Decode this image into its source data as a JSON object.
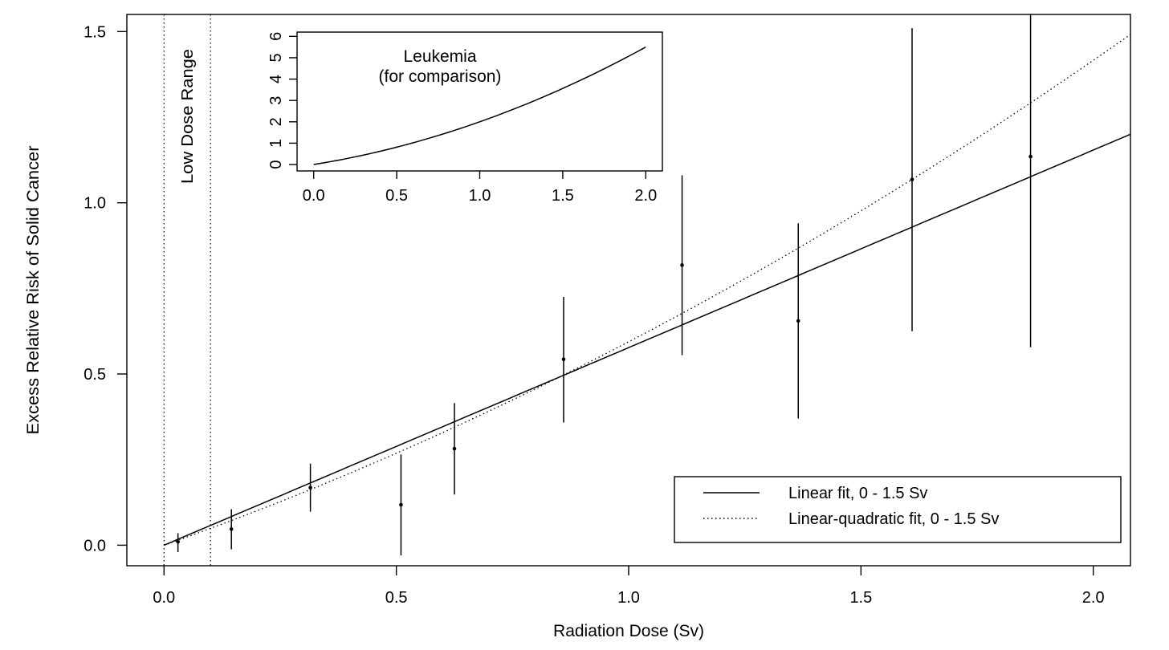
{
  "chart_data": [
    {
      "type": "line",
      "title": "",
      "xlabel": "Radiation Dose (Sv)",
      "ylabel": "Excess Relative Risk of Solid Cancer",
      "xlim": [
        -0.08,
        2.08
      ],
      "ylim": [
        -0.06,
        1.55
      ],
      "x_ticks": [
        0.0,
        0.5,
        1.0,
        1.5,
        2.0
      ],
      "x_tick_labels": [
        "0.0",
        "0.5",
        "1.0",
        "1.5",
        "2.0"
      ],
      "y_ticks": [
        0.0,
        0.5,
        1.0,
        1.5
      ],
      "y_tick_labels": [
        "0.0",
        "0.5",
        "1.0",
        "1.5"
      ],
      "grid": false,
      "low_dose_range": {
        "label": "Low Dose Range",
        "x_start": 0.0,
        "x_end": 0.1
      },
      "points": [
        {
          "x": 0.03,
          "y": 0.01,
          "lower": -0.02,
          "upper": 0.035
        },
        {
          "x": 0.145,
          "y": 0.047,
          "lower": -0.012,
          "upper": 0.105
        },
        {
          "x": 0.315,
          "y": 0.168,
          "lower": 0.098,
          "upper": 0.238
        },
        {
          "x": 0.51,
          "y": 0.118,
          "lower": -0.03,
          "upper": 0.265
        },
        {
          "x": 0.625,
          "y": 0.282,
          "lower": 0.148,
          "upper": 0.415
        },
        {
          "x": 0.86,
          "y": 0.543,
          "lower": 0.358,
          "upper": 0.725
        },
        {
          "x": 1.115,
          "y": 0.818,
          "lower": 0.555,
          "upper": 1.08
        },
        {
          "x": 1.365,
          "y": 0.655,
          "lower": 0.37,
          "upper": 0.94
        },
        {
          "x": 1.61,
          "y": 1.068,
          "lower": 0.625,
          "upper": 1.51
        },
        {
          "x": 1.865,
          "y": 1.135,
          "lower": 0.578,
          "upper": 1.55
        }
      ],
      "series": [
        {
          "name": "Linear fit, 0 - 1.5 Sv",
          "style": "solid",
          "intercept": 0.0,
          "linear": 0.577,
          "quadratic": 0.0
        },
        {
          "name": "Linear-quadratic fit, 0 - 1.5 Sv",
          "style": "dotted",
          "intercept": 0.0,
          "linear": 0.48,
          "quadratic": 0.114
        }
      ],
      "legend": {
        "position": "bottom-right",
        "entries": [
          "Linear fit, 0 - 1.5 Sv",
          "Linear-quadratic fit, 0 - 1.5 Sv"
        ]
      }
    },
    {
      "type": "line",
      "title": "Leukemia",
      "subtitle": "(for comparison)",
      "position": "inset top-center",
      "xlim": [
        -0.1,
        2.1
      ],
      "ylim": [
        -0.3,
        6.2
      ],
      "x_ticks": [
        0.0,
        0.5,
        1.0,
        1.5,
        2.0
      ],
      "x_tick_labels": [
        "0.0",
        "0.5",
        "1.0",
        "1.5",
        "2.0"
      ],
      "y_ticks": [
        0,
        1,
        2,
        3,
        4,
        5,
        6
      ],
      "y_tick_labels": [
        "0",
        "1",
        "2",
        "3",
        "4",
        "5",
        "6"
      ],
      "series": [
        {
          "name": "Leukemia",
          "style": "solid",
          "intercept": 0.0,
          "linear": 1.25,
          "quadratic": 0.75
        }
      ]
    }
  ]
}
